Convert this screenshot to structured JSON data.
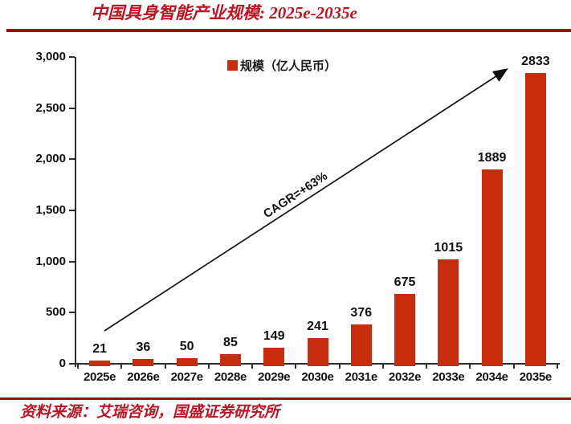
{
  "title": "中国具身智能产业规模: 2025e-2035e",
  "source": "资料来源：艾瑞咨询，国盛证券研究所",
  "legend": {
    "label": "规模（亿人民币）"
  },
  "annotation": {
    "cagr_label": "CAGR=+63%"
  },
  "colors": {
    "bar": "#C92C0C",
    "title_red": "#C01322",
    "rule_red": "#A40A0A",
    "axis": "#2F2F2F",
    "text": "#111111"
  },
  "chart_data": {
    "type": "bar",
    "title": "中国具身智能产业规模: 2025e-2035e",
    "categories": [
      "2025e",
      "2026e",
      "2027e",
      "2028e",
      "2029e",
      "2030e",
      "2031e",
      "2032e",
      "2033e",
      "2034e",
      "2035e"
    ],
    "series": [
      {
        "name": "规模（亿人民币）",
        "values": [
          21,
          36,
          50,
          85,
          149,
          241,
          376,
          675,
          1015,
          1889,
          2833
        ]
      }
    ],
    "xlabel": "",
    "ylabel": "",
    "ylim": [
      0,
      3000
    ],
    "yticks": [
      0,
      500,
      1000,
      1500,
      2000,
      2500,
      3000
    ],
    "grid": false,
    "legend_position": "top-center",
    "annotations": [
      "CAGR=+63%"
    ],
    "data_labels": true
  }
}
